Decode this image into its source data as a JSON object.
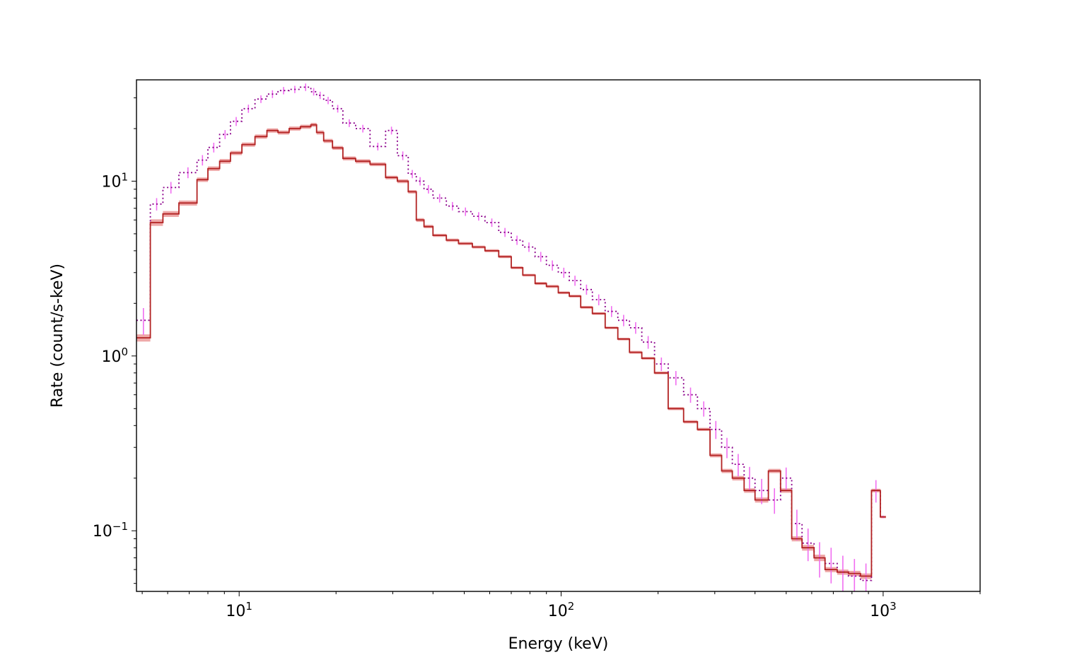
{
  "chart_data": {
    "type": "line",
    "title": "",
    "xlabel": "Energy (keV)",
    "ylabel": "Rate (count/s-keV)",
    "xscale": "log",
    "yscale": "log",
    "xlim": [
      4.8,
      2000
    ],
    "ylim": [
      0.045,
      38
    ],
    "grid": false,
    "x_ticks": [
      {
        "value": 10,
        "base": "10",
        "exp": "1"
      },
      {
        "value": 100,
        "base": "10",
        "exp": "2"
      },
      {
        "value": 1000,
        "base": "10",
        "exp": "3"
      }
    ],
    "y_ticks": [
      {
        "value": 0.1,
        "base": "10",
        "exp": "−1"
      },
      {
        "value": 1,
        "base": "10",
        "exp": "0"
      },
      {
        "value": 10,
        "base": "10",
        "exp": "1"
      }
    ],
    "colors": {
      "data_errorbar": "#f06ef0",
      "data_step": "#8b008b",
      "model_band": "#e06060",
      "model_line": "#b22222"
    },
    "series": [
      {
        "style": "dotted-step-with-errorbars",
        "edges": [
          5.3,
          5.8,
          6.5,
          7.4,
          8.0,
          8.7,
          9.4,
          10.2,
          11.2,
          12.2,
          13.2,
          14.3,
          15.5,
          16.7,
          17.4,
          18.3,
          19.5,
          21.0,
          23.0,
          25.5,
          28.5,
          31.0,
          33.5,
          35.5,
          37.5,
          40.0,
          44.0,
          48.0,
          53.0,
          58.0,
          64.0,
          70.0,
          76.0,
          83.0,
          90.0,
          98.0,
          106.0,
          115.0,
          125.0,
          137.0,
          150.0,
          163.0,
          178.0,
          195.0,
          215.0,
          240.0,
          265.0,
          290.0,
          315.0,
          340.0,
          370.0,
          400.0,
          440.0,
          480.0,
          520.0,
          560.0,
          610.0,
          660.0,
          720.0,
          780.0,
          850.0,
          920.0,
          980.0,
          1020.0,
          2000.0
        ],
        "values": [
          1.6,
          7.4,
          9.2,
          11.2,
          13.2,
          15.6,
          18.5,
          22.0,
          26.0,
          29.5,
          31.5,
          33.0,
          33.5,
          34.5,
          32.5,
          31.0,
          29.0,
          26.0,
          21.5,
          20.0,
          15.8,
          19.5,
          14.0,
          11.0,
          10.0,
          9.0,
          8.0,
          7.2,
          6.7,
          6.3,
          5.8,
          5.1,
          4.6,
          4.2,
          3.7,
          3.3,
          3.0,
          2.7,
          2.4,
          2.1,
          1.8,
          1.6,
          1.45,
          1.2,
          0.9,
          0.75,
          0.6,
          0.5,
          0.38,
          0.3,
          0.24,
          0.2,
          0.17,
          0.15,
          0.2,
          0.11,
          0.085,
          0.07,
          0.065,
          0.058,
          0.055,
          0.052,
          0.17,
          0.12
        ],
        "errors": [
          0.28,
          0.6,
          0.7,
          0.8,
          0.9,
          1.0,
          1.1,
          1.3,
          1.4,
          1.5,
          1.6,
          1.6,
          1.6,
          1.7,
          1.6,
          1.5,
          1.4,
          1.3,
          1.1,
          1.0,
          0.8,
          1.0,
          0.8,
          0.6,
          0.55,
          0.5,
          0.45,
          0.4,
          0.37,
          0.35,
          0.32,
          0.3,
          0.28,
          0.26,
          0.24,
          0.22,
          0.2,
          0.18,
          0.16,
          0.15,
          0.13,
          0.12,
          0.11,
          0.1,
          0.08,
          0.07,
          0.06,
          0.05,
          0.045,
          0.04,
          0.035,
          0.032,
          0.028,
          0.025,
          0.03,
          0.022,
          0.018,
          0.016,
          0.015,
          0.014,
          0.014,
          0.013,
          0.025,
          0.002
        ]
      },
      {
        "style": "solid-step-with-band",
        "edges": [
          5.3,
          5.8,
          6.5,
          7.4,
          8.0,
          8.7,
          9.4,
          10.2,
          11.2,
          12.2,
          13.2,
          14.3,
          15.5,
          16.7,
          17.4,
          18.3,
          19.5,
          21.0,
          23.0,
          25.5,
          28.5,
          31.0,
          33.5,
          35.5,
          37.5,
          40.0,
          44.0,
          48.0,
          53.0,
          58.0,
          64.0,
          70.0,
          76.0,
          83.0,
          90.0,
          98.0,
          106.0,
          115.0,
          125.0,
          137.0,
          150.0,
          163.0,
          178.0,
          195.0,
          215.0,
          240.0,
          265.0,
          290.0,
          315.0,
          340.0,
          370.0,
          400.0,
          440.0,
          480.0,
          520.0,
          560.0,
          610.0,
          660.0,
          720.0,
          780.0,
          850.0,
          920.0,
          980.0,
          1020.0,
          2000.0
        ],
        "values": [
          1.27,
          5.8,
          6.5,
          7.5,
          10.2,
          11.8,
          13.0,
          14.5,
          16.2,
          18.0,
          19.5,
          19.0,
          20.0,
          20.5,
          21.0,
          19.0,
          17.0,
          15.5,
          13.5,
          13.0,
          12.5,
          10.5,
          10.0,
          8.7,
          6.0,
          5.5,
          4.9,
          4.6,
          4.4,
          4.2,
          4.0,
          3.7,
          3.2,
          2.9,
          2.6,
          2.5,
          2.3,
          2.2,
          1.9,
          1.75,
          1.45,
          1.25,
          1.05,
          0.97,
          0.8,
          0.5,
          0.42,
          0.38,
          0.27,
          0.22,
          0.2,
          0.17,
          0.15,
          0.22,
          0.17,
          0.09,
          0.08,
          0.07,
          0.06,
          0.058,
          0.057,
          0.055,
          0.17,
          0.12
        ],
        "band_width": [
          0.06,
          0.25,
          0.25,
          0.25,
          0.3,
          0.35,
          0.4,
          0.4,
          0.45,
          0.5,
          0.55,
          0.5,
          0.55,
          0.55,
          0.55,
          0.5,
          0.45,
          0.4,
          0.35,
          0.35,
          0.3,
          0.25,
          0.25,
          0.2,
          0.15,
          0.12,
          0.1,
          0.1,
          0.09,
          0.08,
          0.08,
          0.07,
          0.06,
          0.05,
          0.05,
          0.05,
          0.04,
          0.04,
          0.035,
          0.03,
          0.025,
          0.022,
          0.02,
          0.018,
          0.015,
          0.01,
          0.009,
          0.008,
          0.007,
          0.006,
          0.006,
          0.005,
          0.005,
          0.006,
          0.005,
          0.003,
          0.003,
          0.003,
          0.002,
          0.002,
          0.002,
          0.002,
          0.004,
          0.002
        ]
      }
    ]
  }
}
